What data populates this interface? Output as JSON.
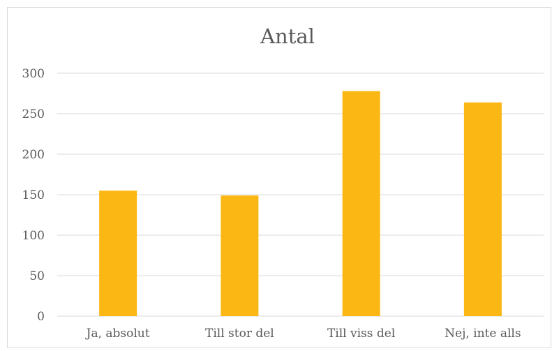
{
  "chart_data": {
    "type": "bar",
    "title": "Antal",
    "categories": [
      "Ja, absolut",
      "Till stor del",
      "Till viss del",
      "Nej, inte alls"
    ],
    "values": [
      155,
      149,
      278,
      264
    ],
    "ylim": [
      0,
      300
    ],
    "yticks": [
      "0",
      "50",
      "100",
      "150",
      "200",
      "250",
      "300"
    ],
    "grid": true,
    "bar_color": "#FBB714",
    "grid_color": "#d9d9d9"
  }
}
